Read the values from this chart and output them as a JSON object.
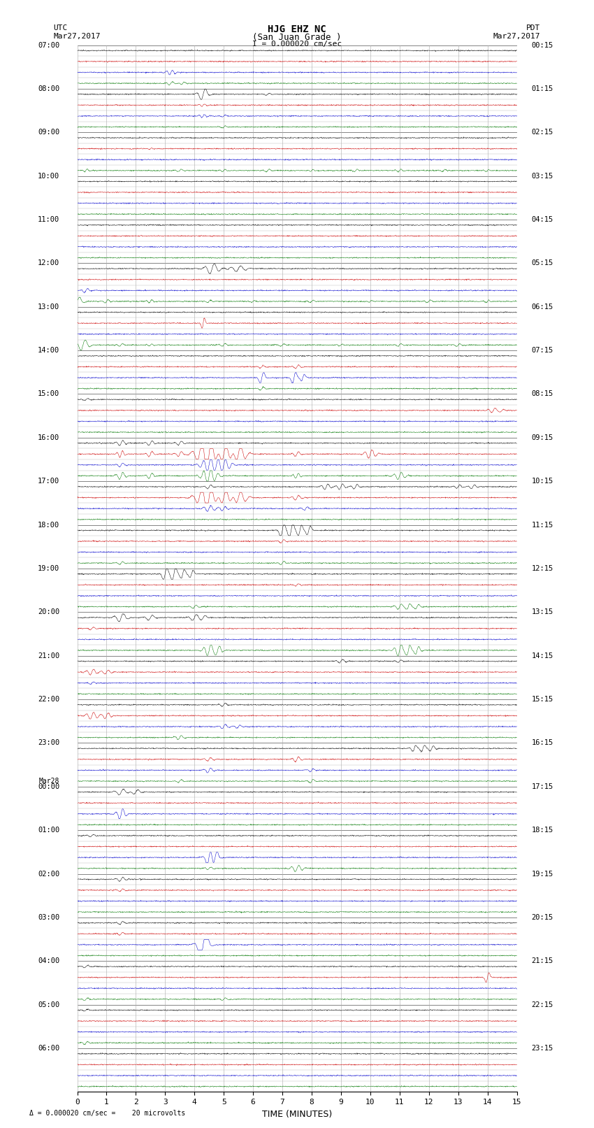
{
  "title_line1": "HJG EHZ NC",
  "title_line2": "(San Juan Grade )",
  "scale_text": "I = 0.000020 cm/sec",
  "footer_text": "= 0.000020 cm/sec =    20 microvolts",
  "left_header": "UTC",
  "left_date": "Mar27,2017",
  "right_header": "PDT",
  "right_date": "Mar27,2017",
  "xlabel": "TIME (MINUTES)",
  "xmin": 0,
  "xmax": 15,
  "xticks": [
    0,
    1,
    2,
    3,
    4,
    5,
    6,
    7,
    8,
    9,
    10,
    11,
    12,
    13,
    14,
    15
  ],
  "background": "#ffffff",
  "trace_colors": [
    "#000000",
    "#cc0000",
    "#0000cc",
    "#007700"
  ],
  "grid_color": "#aaaaaa",
  "hour_line_color": "#555555",
  "utc_hours": [
    "07:00",
    "08:00",
    "09:00",
    "10:00",
    "11:00",
    "12:00",
    "13:00",
    "14:00",
    "15:00",
    "16:00",
    "17:00",
    "18:00",
    "19:00",
    "20:00",
    "21:00",
    "22:00",
    "23:00",
    "Mar28",
    "00:00",
    "01:00",
    "02:00",
    "03:00",
    "04:00",
    "05:00",
    "06:00"
  ],
  "pdt_hours": [
    "00:15",
    "01:15",
    "02:15",
    "03:15",
    "04:15",
    "05:15",
    "06:15",
    "07:15",
    "08:15",
    "09:15",
    "10:15",
    "11:15",
    "12:15",
    "13:15",
    "14:15",
    "15:15",
    "16:15",
    "17:15",
    "18:15",
    "19:15",
    "20:15",
    "21:15",
    "22:15",
    "23:15"
  ],
  "num_hours": 24,
  "traces_per_hour": 4,
  "noise_amplitude": 0.025,
  "noise_seed": 12345
}
